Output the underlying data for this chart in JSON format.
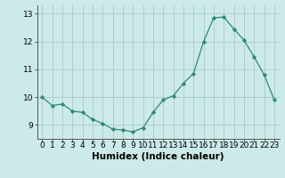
{
  "x": [
    0,
    1,
    2,
    3,
    4,
    5,
    6,
    7,
    8,
    9,
    10,
    11,
    12,
    13,
    14,
    15,
    16,
    17,
    18,
    19,
    20,
    21,
    22,
    23
  ],
  "y": [
    10.0,
    9.7,
    9.75,
    9.5,
    9.45,
    9.2,
    9.05,
    8.85,
    8.82,
    8.75,
    8.9,
    9.45,
    9.9,
    10.05,
    10.5,
    10.85,
    12.0,
    12.85,
    12.88,
    12.45,
    12.05,
    11.45,
    10.8,
    9.9
  ],
  "line_color": "#2e8b6e",
  "marker": "D",
  "marker_size": 2.2,
  "bg_color": "#cdeaea",
  "grid_color": "#aecece",
  "xlabel": "Humidex (Indice chaleur)",
  "ylim": [
    8.5,
    13.3
  ],
  "xlim": [
    -0.5,
    23.5
  ],
  "yticks": [
    9,
    10,
    11,
    12,
    13
  ],
  "xtick_labels": [
    "0",
    "1",
    "2",
    "3",
    "4",
    "5",
    "6",
    "7",
    "8",
    "9",
    "10",
    "11",
    "12",
    "13",
    "14",
    "15",
    "16",
    "17",
    "18",
    "19",
    "20",
    "21",
    "22",
    "23"
  ],
  "tick_fontsize": 6.5,
  "label_fontsize": 7.5
}
